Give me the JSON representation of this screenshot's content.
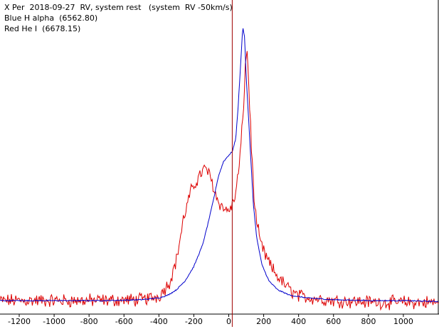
{
  "window_title": "",
  "chart_data": {
    "type": "line",
    "title_lines": [
      "X Per  2018-09-27  RV, system rest   (system  RV -50km/s)",
      "Blue H alpha  (6562.80)",
      "Red He I  (6678.15)"
    ],
    "xlabel": "",
    "ylabel": "",
    "xlim": [
      -1310,
      1200
    ],
    "ylim": [
      0.85,
      4.35
    ],
    "x_ticks": [
      -1200,
      -1000,
      -800,
      -600,
      -400,
      -200,
      0,
      200,
      400,
      600,
      800,
      1000
    ],
    "x_tick_labels": [
      "-1200",
      "-1000",
      "-800",
      "-600",
      "-400",
      "-200",
      "0",
      "200",
      "400",
      "600",
      "800",
      "1000"
    ],
    "grid": false,
    "reference_line": {
      "x": 20,
      "color": "#a00000"
    },
    "series": [
      {
        "name": "Blue H alpha  (6562.80)",
        "color": "#0000cc",
        "points": [
          [
            -1300,
            1.0
          ],
          [
            -1000,
            1.0
          ],
          [
            -700,
            1.0
          ],
          [
            -500,
            1.01
          ],
          [
            -400,
            1.03
          ],
          [
            -350,
            1.06
          ],
          [
            -300,
            1.12
          ],
          [
            -250,
            1.22
          ],
          [
            -200,
            1.38
          ],
          [
            -150,
            1.62
          ],
          [
            -120,
            1.85
          ],
          [
            -90,
            2.1
          ],
          [
            -60,
            2.38
          ],
          [
            -30,
            2.55
          ],
          [
            0,
            2.62
          ],
          [
            20,
            2.66
          ],
          [
            40,
            2.8
          ],
          [
            55,
            3.2
          ],
          [
            70,
            3.7
          ],
          [
            80,
            4.05
          ],
          [
            90,
            3.95
          ],
          [
            100,
            3.5
          ],
          [
            120,
            2.8
          ],
          [
            140,
            2.1
          ],
          [
            160,
            1.7
          ],
          [
            190,
            1.4
          ],
          [
            230,
            1.22
          ],
          [
            280,
            1.12
          ],
          [
            350,
            1.06
          ],
          [
            450,
            1.03
          ],
          [
            600,
            1.01
          ],
          [
            800,
            1.0
          ],
          [
            1000,
            1.0
          ],
          [
            1200,
            0.99
          ]
        ]
      },
      {
        "name": "Red He I  (6678.15)",
        "color": "#dd0000",
        "noise_amplitude": 0.06,
        "points": [
          [
            -1300,
            1.0
          ],
          [
            -800,
            1.0
          ],
          [
            -500,
            1.01
          ],
          [
            -400,
            1.05
          ],
          [
            -340,
            1.2
          ],
          [
            -300,
            1.45
          ],
          [
            -260,
            1.9
          ],
          [
            -220,
            2.2
          ],
          [
            -180,
            2.35
          ],
          [
            -160,
            2.42
          ],
          [
            -130,
            2.48
          ],
          [
            -100,
            2.35
          ],
          [
            -70,
            2.15
          ],
          [
            -40,
            2.05
          ],
          [
            -10,
            2.0
          ],
          [
            20,
            2.05
          ],
          [
            40,
            2.2
          ],
          [
            60,
            2.5
          ],
          [
            80,
            3.0
          ],
          [
            95,
            3.6
          ],
          [
            105,
            3.8
          ],
          [
            115,
            3.4
          ],
          [
            130,
            2.7
          ],
          [
            150,
            2.0
          ],
          [
            180,
            1.65
          ],
          [
            210,
            1.5
          ],
          [
            250,
            1.35
          ],
          [
            300,
            1.22
          ],
          [
            350,
            1.12
          ],
          [
            400,
            1.05
          ],
          [
            600,
            1.0
          ],
          [
            900,
            0.98
          ],
          [
            1200,
            0.98
          ]
        ]
      }
    ]
  }
}
